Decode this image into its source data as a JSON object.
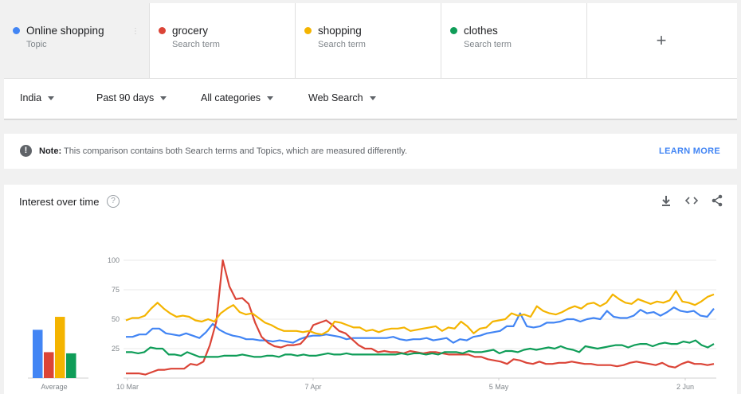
{
  "terms": [
    {
      "name": "Online shopping",
      "sub": "Topic",
      "color": "#4285f4"
    },
    {
      "name": "grocery",
      "sub": "Search term",
      "color": "#db4437"
    },
    {
      "name": "shopping",
      "sub": "Search term",
      "color": "#f4b400"
    },
    {
      "name": "clothes",
      "sub": "Search term",
      "color": "#0f9d58"
    }
  ],
  "add_symbol": "+",
  "filters": {
    "region": "India",
    "period": "Past 90 days",
    "category": "All categories",
    "search_type": "Web Search"
  },
  "note": {
    "label": "Note:",
    "text": "This comparison contains both Search terms and Topics, which are measured differently.",
    "link": "LEARN MORE",
    "icon": "!"
  },
  "chart_card": {
    "title": "Interest over time",
    "help_symbol": "?",
    "download_icon": "⤓",
    "embed_icon": "‹›",
    "share_icon": "share"
  },
  "chart_data": {
    "type": "line",
    "x_ticks": [
      "10 Mar",
      "7 Apr",
      "5 May",
      "2 Jun"
    ],
    "y_ticks": [
      100,
      75,
      50,
      25
    ],
    "ylim": [
      0,
      100
    ],
    "averages_label": "Average",
    "averages": [
      {
        "series": "Online shopping",
        "value": 41
      },
      {
        "series": "grocery",
        "value": 22
      },
      {
        "series": "shopping",
        "value": 52
      },
      {
        "series": "clothes",
        "value": 21
      }
    ],
    "series": [
      {
        "name": "Online shopping",
        "color": "#4285f4",
        "values": [
          35,
          35,
          37,
          37,
          42,
          42,
          38,
          37,
          36,
          38,
          36,
          34,
          39,
          46,
          41,
          38,
          36,
          35,
          33,
          33,
          32,
          32,
          31,
          32,
          31,
          30,
          33,
          35,
          36,
          36,
          37,
          36,
          35,
          33,
          34,
          34,
          34,
          34,
          34,
          34,
          35,
          33,
          32,
          33,
          33,
          34,
          32,
          33,
          34,
          30,
          33,
          32,
          35,
          36,
          38,
          39,
          40,
          44,
          44,
          55,
          44,
          43,
          44,
          47,
          47,
          48,
          50,
          50,
          48,
          50,
          51,
          50,
          57,
          52,
          51,
          51,
          53,
          58,
          55,
          56,
          53,
          56,
          60,
          57,
          56,
          57,
          53,
          52,
          59
        ]
      },
      {
        "name": "grocery",
        "color": "#db4437",
        "values": [
          4,
          4,
          4,
          3,
          5,
          7,
          7,
          8,
          8,
          8,
          12,
          11,
          14,
          28,
          48,
          100,
          78,
          67,
          68,
          63,
          47,
          35,
          30,
          27,
          26,
          28,
          28,
          29,
          35,
          45,
          47,
          49,
          45,
          40,
          38,
          33,
          28,
          25,
          25,
          22,
          23,
          22,
          22,
          21,
          23,
          22,
          21,
          22,
          22,
          21,
          20,
          20,
          20,
          20,
          18,
          18,
          16,
          15,
          14,
          12,
          16,
          15,
          13,
          12,
          14,
          12,
          12,
          13,
          13,
          14,
          13,
          12,
          12,
          11,
          11,
          11,
          10,
          11,
          13,
          14,
          13,
          12,
          11,
          13,
          10,
          9,
          12,
          14,
          12,
          12,
          11,
          12
        ]
      },
      {
        "name": "shopping",
        "color": "#f4b400",
        "values": [
          49,
          51,
          51,
          53,
          59,
          64,
          59,
          55,
          52,
          53,
          52,
          49,
          48,
          50,
          48,
          55,
          59,
          62,
          56,
          54,
          55,
          51,
          47,
          45,
          42,
          40,
          40,
          40,
          39,
          40,
          38,
          37,
          40,
          48,
          47,
          45,
          43,
          43,
          40,
          41,
          39,
          41,
          42,
          42,
          43,
          40,
          41,
          42,
          43,
          44,
          40,
          43,
          42,
          48,
          44,
          38,
          42,
          43,
          48,
          49,
          50,
          55,
          53,
          54,
          52,
          61,
          57,
          55,
          54,
          56,
          59,
          61,
          59,
          63,
          64,
          61,
          64,
          71,
          67,
          64,
          63,
          67,
          65,
          63,
          65,
          64,
          66,
          74,
          65,
          64,
          62,
          65,
          69,
          71
        ]
      },
      {
        "name": "clothes",
        "color": "#0f9d58",
        "values": [
          22,
          22,
          21,
          22,
          26,
          25,
          25,
          20,
          20,
          19,
          22,
          20,
          18,
          18,
          18,
          18,
          19,
          19,
          19,
          20,
          19,
          18,
          18,
          19,
          19,
          18,
          20,
          20,
          19,
          20,
          19,
          19,
          20,
          21,
          20,
          20,
          21,
          20,
          20,
          20,
          20,
          20,
          20,
          20,
          20,
          21,
          20,
          21,
          21,
          20,
          21,
          20,
          22,
          22,
          22,
          21,
          23,
          22,
          22,
          23,
          24,
          21,
          23,
          23,
          22,
          24,
          25,
          24,
          25,
          26,
          25,
          27,
          25,
          24,
          22,
          27,
          26,
          25,
          26,
          27,
          28,
          28,
          26,
          28,
          29,
          29,
          27,
          29,
          30,
          29,
          29,
          31,
          30,
          32,
          28,
          26,
          29
        ]
      }
    ]
  }
}
